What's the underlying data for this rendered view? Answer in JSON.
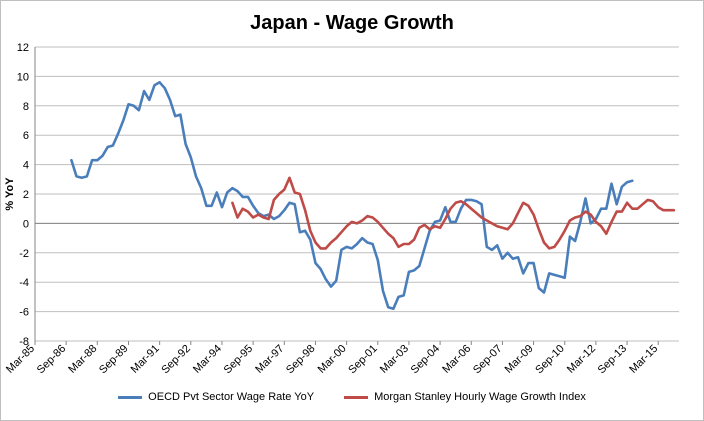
{
  "chart_data": {
    "type": "line",
    "title": "Japan - Wage Growth",
    "ylabel": "% YoY",
    "xlabel": "",
    "ylim": [
      -8,
      12
    ],
    "yticks": [
      "-8",
      "-6",
      "-4",
      "-2",
      "0",
      "2",
      "4",
      "6",
      "8",
      "10",
      "12"
    ],
    "xticks": [
      "Mar-85",
      "Sep-86",
      "Mar-88",
      "Sep-89",
      "Mar-91",
      "Sep-92",
      "Mar-94",
      "Sep-95",
      "Mar-97",
      "Sep-98",
      "Mar-00",
      "Sep-01",
      "Mar-03",
      "Sep-04",
      "Mar-06",
      "Sep-07",
      "Mar-09",
      "Sep-10",
      "Mar-12",
      "Sep-13",
      "Mar-15"
    ],
    "grid": "horizontal",
    "legend_position": "bottom",
    "series": [
      {
        "name": "OECD Pvt Sector Wage Rate YoY",
        "color": "#4a7ebb",
        "x": [
          "Dec-86",
          "Mar-87",
          "Jun-87",
          "Sep-87",
          "Dec-87",
          "Mar-88",
          "Jun-88",
          "Sep-88",
          "Dec-88",
          "Mar-89",
          "Jun-89",
          "Sep-89",
          "Dec-89",
          "Mar-90",
          "Jun-90",
          "Sep-90",
          "Dec-90",
          "Mar-91",
          "Jun-91",
          "Sep-91",
          "Dec-91",
          "Mar-92",
          "Jun-92",
          "Sep-92",
          "Dec-92",
          "Mar-93",
          "Jun-93",
          "Sep-93",
          "Dec-93",
          "Mar-94",
          "Jun-94",
          "Sep-94",
          "Dec-94",
          "Mar-95",
          "Jun-95",
          "Sep-95",
          "Dec-95",
          "Mar-96",
          "Jun-96",
          "Sep-96",
          "Dec-96",
          "Mar-97",
          "Jun-97",
          "Sep-97",
          "Dec-97",
          "Mar-98",
          "Jun-98",
          "Sep-98",
          "Dec-98",
          "Mar-99",
          "Jun-99",
          "Sep-99",
          "Dec-99",
          "Mar-00",
          "Jun-00",
          "Sep-00",
          "Dec-00",
          "Mar-01",
          "Jun-01",
          "Sep-01",
          "Dec-01",
          "Mar-02",
          "Jun-02",
          "Sep-02",
          "Dec-02",
          "Mar-03",
          "Jun-03",
          "Sep-03",
          "Dec-03",
          "Mar-04",
          "Jun-04",
          "Sep-04",
          "Dec-04",
          "Mar-05",
          "Jun-05",
          "Sep-05",
          "Dec-05",
          "Mar-06",
          "Jun-06",
          "Sep-06",
          "Dec-06",
          "Mar-07",
          "Jun-07",
          "Sep-07",
          "Dec-07",
          "Mar-08",
          "Jun-08",
          "Sep-08",
          "Dec-08",
          "Mar-09",
          "Jun-09",
          "Sep-09",
          "Dec-09",
          "Mar-10",
          "Jun-10",
          "Sep-10",
          "Dec-10",
          "Mar-11",
          "Jun-11",
          "Sep-11",
          "Dec-11",
          "Mar-12",
          "Jun-12",
          "Sep-12",
          "Dec-12",
          "Mar-13",
          "Jun-13",
          "Sep-13",
          "Dec-13"
        ],
        "values": [
          4.3,
          3.2,
          3.1,
          3.2,
          4.3,
          4.3,
          4.6,
          5.2,
          5.3,
          6.1,
          7.0,
          8.1,
          8.0,
          7.7,
          9.0,
          8.4,
          9.4,
          9.6,
          9.2,
          8.4,
          7.3,
          7.4,
          5.4,
          4.5,
          3.2,
          2.4,
          1.2,
          1.2,
          2.1,
          1.1,
          2.1,
          2.4,
          2.2,
          1.8,
          1.8,
          1.2,
          0.7,
          0.5,
          0.6,
          0.3,
          0.5,
          0.9,
          1.4,
          1.3,
          -0.6,
          -0.5,
          -1.1,
          -2.7,
          -3.1,
          -3.8,
          -4.3,
          -3.9,
          -1.8,
          -1.6,
          -1.7,
          -1.4,
          -1.0,
          -1.3,
          -1.4,
          -2.5,
          -4.6,
          -5.7,
          -5.8,
          -5.0,
          -4.9,
          -3.3,
          -3.2,
          -2.9,
          -1.7,
          -0.5,
          0.1,
          0.2,
          1.1,
          0.1,
          0.1,
          1.0,
          1.6,
          1.6,
          1.5,
          1.3,
          -1.6,
          -1.8,
          -1.5,
          -2.4,
          -2.0,
          -2.4,
          -2.3,
          -3.4,
          -2.7,
          -2.7,
          -4.4,
          -4.7,
          -3.4,
          -3.5,
          -3.6,
          -3.7,
          -0.9,
          -1.2,
          0.1,
          1.7,
          0.0,
          0.3,
          1.0,
          1.0,
          2.7,
          1.3,
          2.5,
          2.8,
          2.9
        ]
      },
      {
        "name": "Morgan Stanley Hourly Wage Growth Index",
        "color": "#be4b48",
        "x": [
          "Sep-94",
          "Dec-94",
          "Mar-95",
          "Jun-95",
          "Sep-95",
          "Dec-95",
          "Mar-96",
          "Jun-96",
          "Sep-96",
          "Dec-96",
          "Mar-97",
          "Jun-97",
          "Sep-97",
          "Dec-97",
          "Mar-98",
          "Jun-98",
          "Sep-98",
          "Dec-98",
          "Mar-99",
          "Jun-99",
          "Sep-99",
          "Dec-99",
          "Mar-00",
          "Jun-00",
          "Sep-00",
          "Dec-00",
          "Mar-01",
          "Jun-01",
          "Sep-01",
          "Dec-01",
          "Mar-02",
          "Jun-02",
          "Sep-02",
          "Dec-02",
          "Mar-03",
          "Jun-03",
          "Sep-03",
          "Dec-03",
          "Mar-04",
          "Jun-04",
          "Sep-04",
          "Dec-04",
          "Mar-05",
          "Jun-05",
          "Sep-05",
          "Dec-05",
          "Mar-06",
          "Jun-06",
          "Sep-06",
          "Dec-06",
          "Mar-07",
          "Jun-07",
          "Sep-07",
          "Dec-07",
          "Mar-08",
          "Jun-08",
          "Sep-08",
          "Dec-08",
          "Mar-09",
          "Jun-09",
          "Sep-09",
          "Dec-09",
          "Mar-10",
          "Jun-10",
          "Sep-10",
          "Dec-10",
          "Mar-11",
          "Jun-11",
          "Sep-11",
          "Dec-11",
          "Mar-12",
          "Jun-12",
          "Sep-12",
          "Dec-12",
          "Mar-13",
          "Jun-13",
          "Sep-13",
          "Dec-13",
          "Mar-14",
          "Jun-14",
          "Sep-14",
          "Dec-14",
          "Mar-15",
          "Jun-15",
          "Sep-15",
          "Dec-15"
        ],
        "values": [
          1.4,
          0.4,
          1.0,
          0.8,
          0.4,
          0.6,
          0.4,
          0.3,
          1.6,
          2.0,
          2.3,
          3.1,
          2.1,
          2.0,
          0.9,
          -0.5,
          -1.3,
          -1.7,
          -1.7,
          -1.3,
          -1.0,
          -0.6,
          -0.2,
          0.1,
          0.0,
          0.2,
          0.5,
          0.4,
          0.1,
          -0.3,
          -0.7,
          -1.0,
          -1.6,
          -1.4,
          -1.4,
          -1.1,
          -0.3,
          -0.1,
          -0.4,
          -0.2,
          -0.3,
          0.3,
          1.0,
          1.4,
          1.5,
          1.3,
          1.0,
          0.7,
          0.4,
          0.2,
          0.0,
          -0.2,
          -0.3,
          -0.4,
          0.0,
          0.7,
          1.4,
          1.2,
          0.6,
          -0.4,
          -1.3,
          -1.7,
          -1.6,
          -1.1,
          -0.5,
          0.2,
          0.4,
          0.5,
          0.8,
          0.6,
          0.1,
          -0.2,
          -0.7,
          0.1,
          0.8,
          0.8,
          1.4,
          1.0,
          1.0,
          1.3,
          1.6,
          1.5,
          1.1,
          0.9,
          0.9,
          0.9
        ]
      }
    ]
  }
}
